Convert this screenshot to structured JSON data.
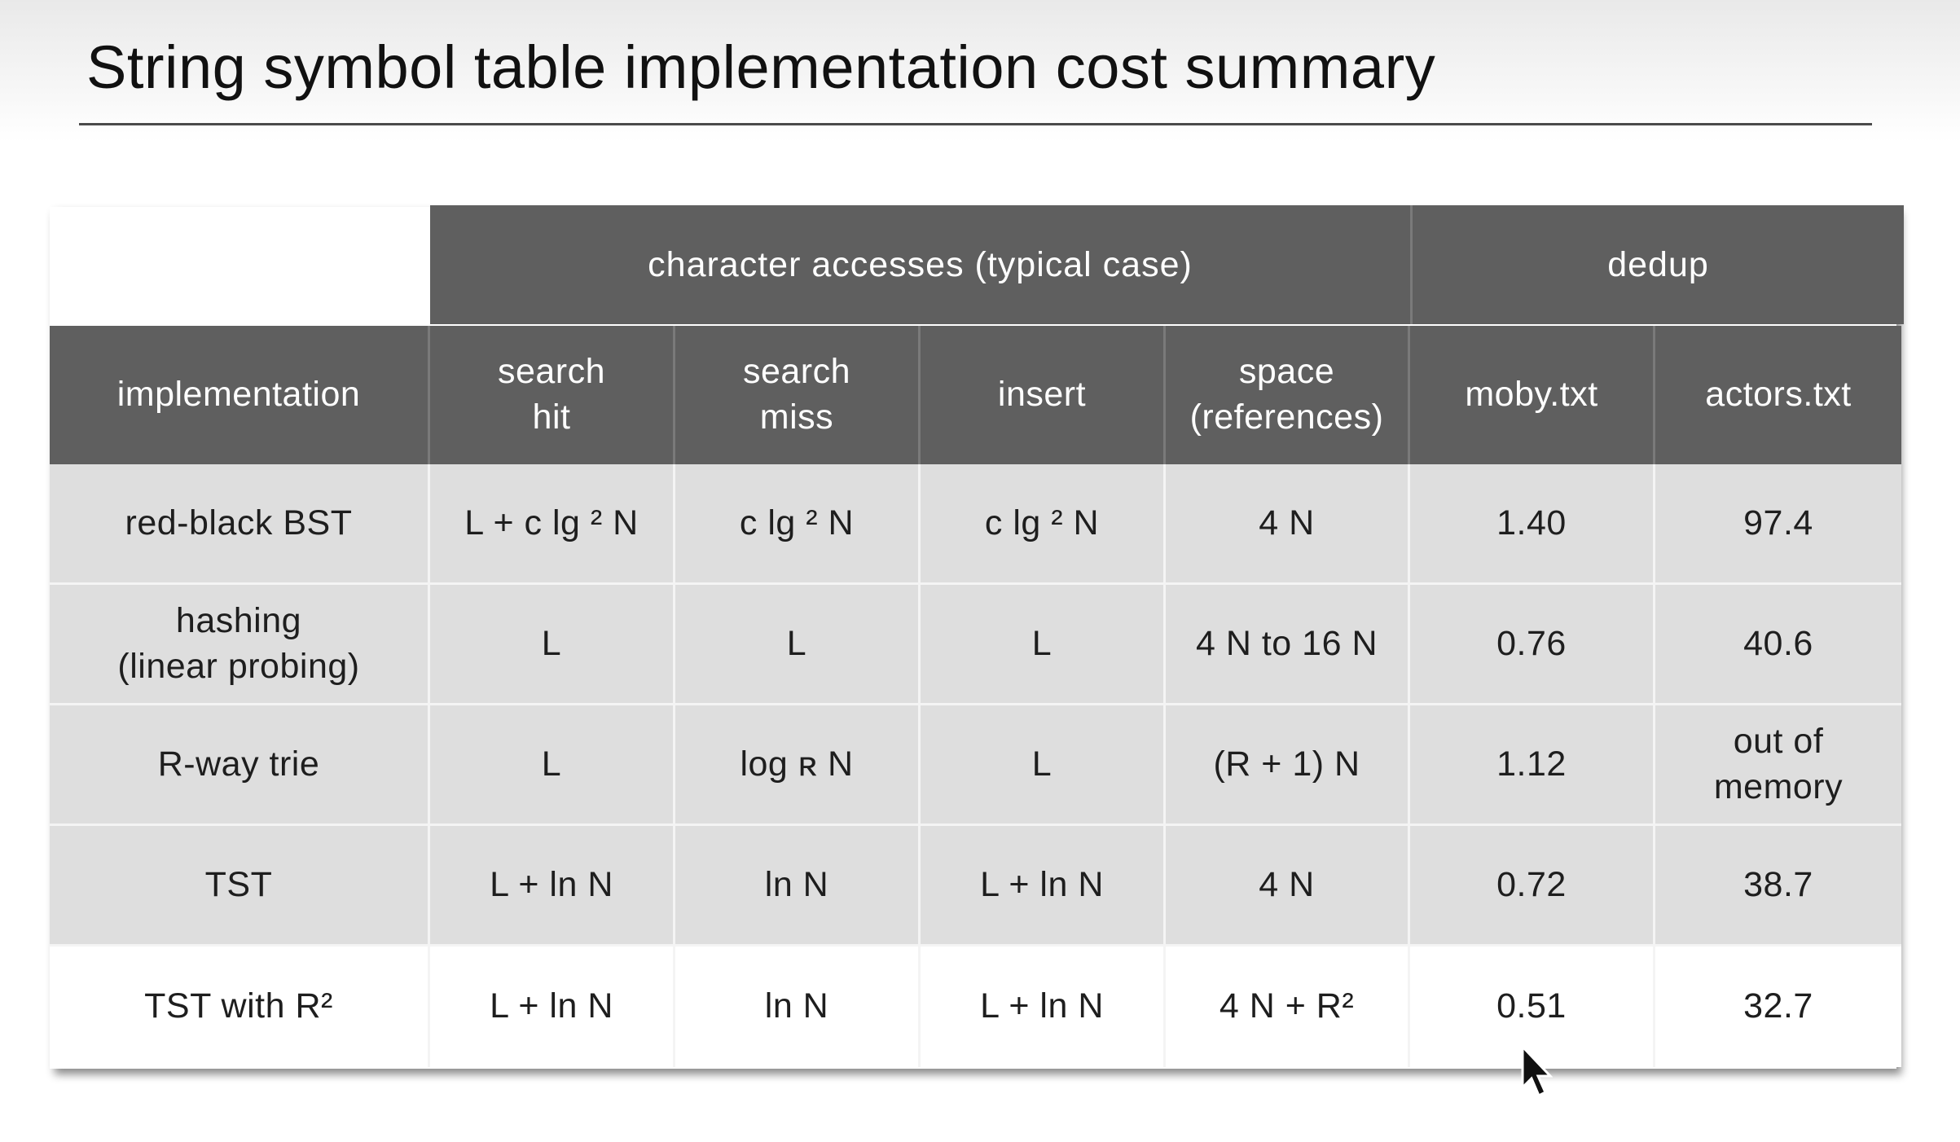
{
  "title": "String symbol table implementation cost summary",
  "group_headers": {
    "char_access": "character accesses (typical case)",
    "dedup": "dedup"
  },
  "columns": [
    "implementation",
    "search\nhit",
    "search\nmiss",
    "insert",
    "space\n(references)",
    "moby.txt",
    "actors.txt"
  ],
  "rows": [
    [
      "red-black BST",
      "L + c lg ² N",
      "c lg ² N",
      "c lg ² N",
      "4 N",
      "1.40",
      "97.4"
    ],
    [
      "hashing\n(linear probing)",
      "L",
      "L",
      "L",
      "4 N to 16 N",
      "0.76",
      "40.6"
    ],
    [
      "R-way trie",
      "L",
      "log ʀ N",
      "L",
      "(R + 1) N",
      "1.12",
      "out of\nmemory"
    ],
    [
      "TST",
      "L + ln N",
      "ln N",
      "L + ln N",
      "4 N",
      "0.72",
      "38.7"
    ],
    [
      "TST with R²",
      "L + ln N",
      "ln N",
      "L + ln N",
      "4 N + R²",
      "0.51",
      "32.7"
    ]
  ],
  "colors": {
    "header_bg": "#5f5f5f",
    "row_shade": "#dedede",
    "row_highlight": "#ffffff"
  }
}
